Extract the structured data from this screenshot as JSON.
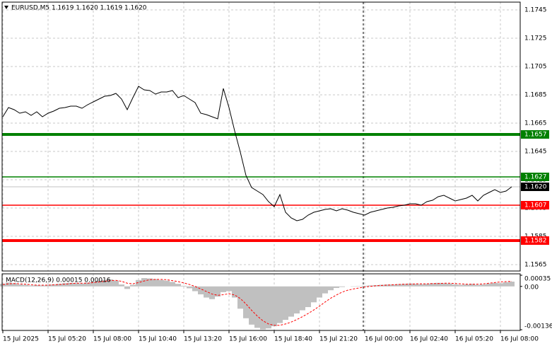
{
  "chart_data": [
    {
      "type": "line",
      "title": "EURUSD,M5  1.1619 1.1620 1.1619 1.1620",
      "categories": [
        "15 Jul 2025",
        null,
        null,
        null,
        null,
        null,
        null,
        null,
        "15 Jul 05:20",
        null,
        null,
        null,
        null,
        null,
        null,
        null,
        "15 Jul 08:00",
        null,
        null,
        null,
        null,
        null,
        null,
        null,
        "15 Jul 10:40",
        null,
        null,
        null,
        null,
        null,
        null,
        null,
        "15 Jul 13:20",
        null,
        null,
        null,
        null,
        null,
        null,
        null,
        "15 Jul 16:00",
        null,
        null,
        null,
        null,
        null,
        null,
        null,
        "15 Jul 18:40",
        null,
        null,
        null,
        null,
        null,
        null,
        null,
        "15 Jul 21:20",
        null,
        null,
        null,
        null,
        null,
        null,
        null,
        "16 Jul 00:00",
        null,
        null,
        null,
        null,
        null,
        null,
        null,
        "16 Jul 02:40",
        null,
        null,
        null,
        null,
        null,
        null,
        null,
        "16 Jul 05:20",
        null,
        null,
        null,
        null,
        null,
        null,
        null,
        "16 Jul 08:00",
        null,
        null
      ],
      "values": [
        1.16695,
        1.1676,
        1.16745,
        1.1672,
        1.1673,
        1.16705,
        1.1673,
        1.16695,
        1.1672,
        1.16735,
        1.16755,
        1.1676,
        1.1677,
        1.1677,
        1.16755,
        1.1678,
        1.168,
        1.1682,
        1.1684,
        1.16845,
        1.1686,
        1.1682,
        1.16745,
        1.1683,
        1.1691,
        1.16885,
        1.1688,
        1.16855,
        1.1687,
        1.1687,
        1.1688,
        1.1683,
        1.16845,
        1.1682,
        1.16795,
        1.1672,
        1.1671,
        1.16695,
        1.1668,
        1.16895,
        1.1676,
        1.16595,
        1.16445,
        1.1628,
        1.16195,
        1.1617,
        1.16145,
        1.16095,
        1.1606,
        1.16145,
        1.1602,
        1.1598,
        1.1596,
        1.1597,
        1.16,
        1.1602,
        1.1603,
        1.1604,
        1.16045,
        1.1603,
        1.16045,
        1.16035,
        1.1602,
        1.1601,
        1.16,
        1.1602,
        1.1603,
        1.1604,
        1.1605,
        1.16055,
        1.16065,
        1.1607,
        1.1608,
        1.1608,
        1.1607,
        1.16095,
        1.16105,
        1.1613,
        1.1614,
        1.1612,
        1.161,
        1.1611,
        1.1612,
        1.1614,
        1.161,
        1.1614,
        1.1616,
        1.1618,
        1.1616,
        1.1617,
        1.162
      ],
      "color": "#000000",
      "ylim": [
        1.15605,
        1.17505
      ],
      "yticks": [
        1.1745,
        1.1725,
        1.1705,
        1.1685,
        1.1665,
        1.1645,
        1.1625,
        1.1605,
        1.1585,
        1.1565
      ],
      "grid": true,
      "levels": [
        {
          "value": 1.1657,
          "color": "#008000",
          "width": 4
        },
        {
          "value": 1.1627,
          "color": "#008000",
          "width": 1.5
        },
        {
          "value": 1.1607,
          "color": "#ff0000",
          "width": 1.5
        },
        {
          "value": 1.1582,
          "color": "#ff0000",
          "width": 4
        }
      ],
      "current_price": {
        "value": 1.162,
        "label": "1.1620"
      }
    },
    {
      "type": "bar",
      "title": "MACD(12,26,9) 0.00015 0.00016",
      "ylim": [
        -0.00136,
        0.00035
      ],
      "yticks": [
        0.00035,
        {
          "value": 0,
          "label": "0.00"
        },
        -0.00136
      ],
      "series": [
        {
          "style": "bar",
          "color": "#c0c0c0",
          "values": [
            8e-05,
            0.00012,
            0.0001,
            6e-05,
            5e-05,
            3e-05,
            4e-05,
            3e-05,
            5e-05,
            6e-05,
            8e-05,
            0.0001,
            0.00011,
            0.0001,
            9e-05,
            0.00012,
            0.00015,
            0.00018,
            0.0002,
            0.00022,
            0.00018,
            6e-05,
            -8e-05,
            5e-05,
            0.0002,
            0.00026,
            0.00025,
            0.00023,
            0.0002,
            0.00018,
            0.00014,
            8e-05,
            2e-05,
            -6e-05,
            -0.00015,
            -0.00025,
            -0.00035,
            -0.0004,
            -0.00032,
            -0.00018,
            -0.00015,
            -0.00035,
            -0.0007,
            -0.001,
            -0.0012,
            -0.0013,
            -0.00135,
            -0.00132,
            -0.00125,
            -0.00115,
            -0.00105,
            -0.00095,
            -0.00085,
            -0.00075,
            -0.00065,
            -0.0005,
            -0.00035,
            -0.00022,
            -0.00012,
            -5e-05,
            -2e-05,
            0,
            -1e-05,
            1e-05,
            2e-05,
            3e-05,
            4e-05,
            5e-05,
            6e-05,
            6e-05,
            7e-05,
            8e-05,
            9e-05,
            8e-05,
            7e-05,
            8e-05,
            0.0001,
            0.00011,
            0.0001,
            9e-05,
            6e-05,
            5e-05,
            6e-05,
            8e-05,
            5e-05,
            6e-05,
            9e-05,
            0.00011,
            0.0001,
            0.00013,
            0.00015
          ]
        },
        {
          "style": "line",
          "color": "#ff0000",
          "values": [
            6e-05,
            8e-05,
            9e-05,
            8e-05,
            7e-05,
            5e-05,
            4e-05,
            4e-05,
            4e-05,
            5e-05,
            6e-05,
            7e-05,
            9e-05,
            0.0001,
            0.0001,
            0.0001,
            0.00012,
            0.00014,
            0.00016,
            0.00018,
            0.00019,
            0.00016,
            0.0001,
            8e-05,
            0.00012,
            0.00017,
            0.00021,
            0.00022,
            0.00022,
            0.00021,
            0.00018,
            0.00015,
            0.00011,
            6e-05,
            0,
            -8e-05,
            -0.00016,
            -0.00024,
            -0.00028,
            -0.00026,
            -0.00023,
            -0.00027,
            -0.00038,
            -0.00055,
            -0.00075,
            -0.00093,
            -0.00108,
            -0.00118,
            -0.00122,
            -0.00122,
            -0.00118,
            -0.00112,
            -0.00104,
            -0.00095,
            -0.00085,
            -0.00074,
            -0.00062,
            -0.00049,
            -0.00037,
            -0.00027,
            -0.00018,
            -0.00012,
            -8e-05,
            -5e-05,
            -2e-05,
            0,
            2e-05,
            3e-05,
            4e-05,
            5e-05,
            6e-05,
            7e-05,
            7e-05,
            8e-05,
            8e-05,
            8e-05,
            9e-05,
            9e-05,
            0.0001,
            0.0001,
            9e-05,
            8e-05,
            7e-05,
            7e-05,
            7e-05,
            8e-05,
            0.0001,
            0.00012,
            0.00014,
            0.00015,
            0.00016
          ]
        }
      ]
    }
  ]
}
